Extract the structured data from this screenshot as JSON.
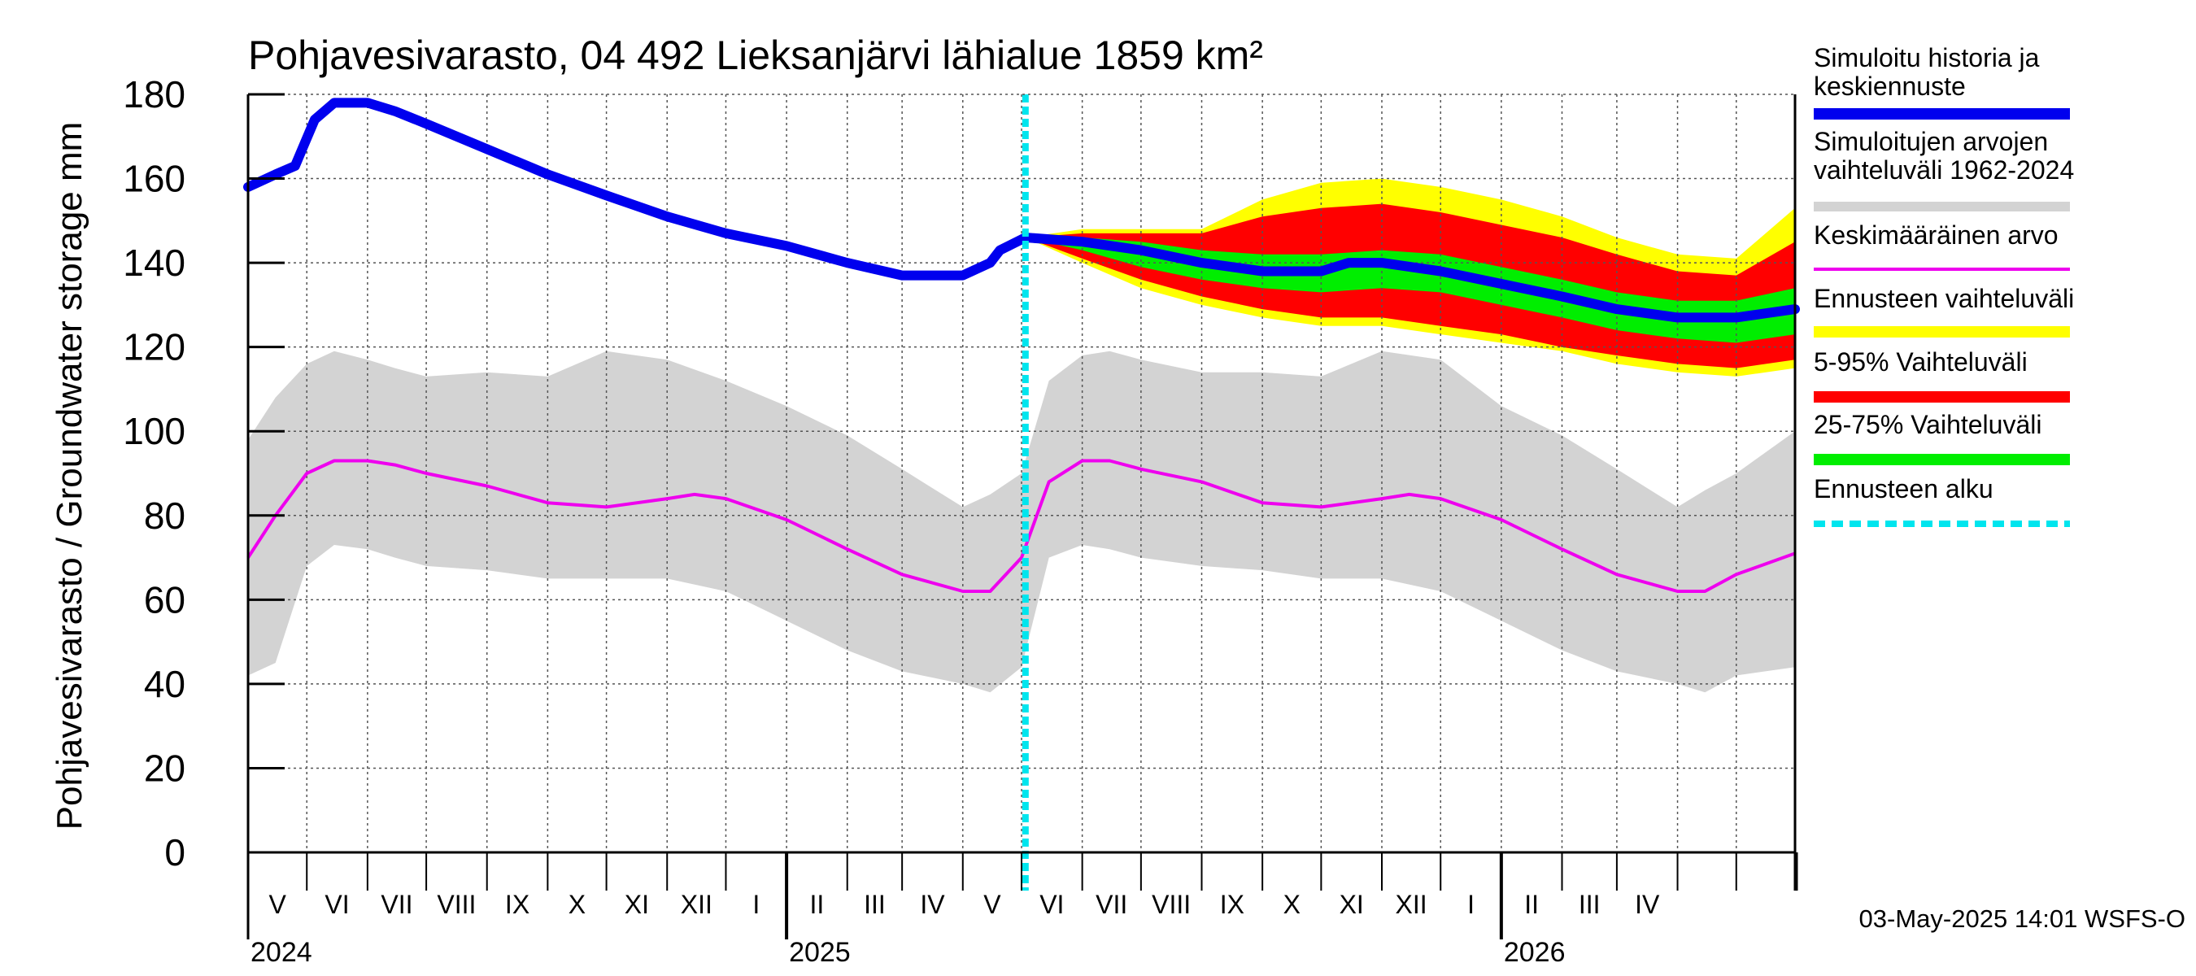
{
  "chart_data": {
    "type": "area",
    "title": "Pohjavesivarasto, 04 492 Lieksanjärvi lähialue 1859 km²",
    "ylabel": "Pohjavesivarasto / Groundwater storage   mm",
    "ylim": [
      0,
      180
    ],
    "yticks": [
      "0",
      "20",
      "40",
      "60",
      "80",
      "100",
      "120",
      "140",
      "160",
      "180"
    ],
    "grid": true,
    "x_start": "2024-04-01",
    "x_end": "2026-05-31",
    "forecast_start": "2025-05-03",
    "months": [
      "V",
      "VI",
      "VII",
      "VIII",
      "IX",
      "X",
      "XI",
      "XII",
      "I",
      "II",
      "III",
      "IV",
      "V",
      "VI",
      "VII",
      "VIII",
      "IX",
      "X",
      "XI",
      "XII",
      "I",
      "II",
      "III",
      "IV"
    ],
    "years": [
      "2024",
      "2025",
      "2026"
    ],
    "timestamp": "03-May-2025 14:01 WSFS-O",
    "legend": [
      "Simuloitu historia ja keskiennuste",
      "Simuloitujen arvojen vaihteluväli 1962-2024",
      "Keskimääräinen arvo",
      "Ennusteen vaihteluväli",
      "5-95% Vaihteluväli",
      "25-75% Vaihteluväli",
      "Ennusteen alku"
    ],
    "legend_colors": [
      "#0000ee",
      "#d3d3d3",
      "#ee00ee",
      "#ffff00",
      "#ff0000",
      "#00ee00",
      "#00e5ee"
    ],
    "historical_range": {
      "x": [
        "2024-04-01",
        "2024-04-15",
        "2024-05-01",
        "2024-05-15",
        "2024-06-01",
        "2024-06-15",
        "2024-07-01",
        "2024-08-01",
        "2024-09-01",
        "2024-10-01",
        "2024-11-01",
        "2024-12-01",
        "2025-01-01",
        "2025-02-01",
        "2025-03-01",
        "2025-04-01",
        "2025-04-15",
        "2025-05-01",
        "2025-05-15",
        "2025-06-01",
        "2025-06-15",
        "2025-07-01",
        "2025-08-01",
        "2025-09-01",
        "2025-10-01",
        "2025-11-01",
        "2025-12-01",
        "2026-01-01",
        "2026-02-01",
        "2026-03-01",
        "2026-04-01",
        "2026-04-15",
        "2026-05-01",
        "2026-05-31"
      ],
      "low": [
        42,
        45,
        68,
        73,
        72,
        70,
        68,
        67,
        65,
        65,
        65,
        62,
        55,
        48,
        43,
        40,
        38,
        44,
        70,
        73,
        72,
        70,
        68,
        67,
        65,
        65,
        62,
        55,
        48,
        43,
        40,
        38,
        42,
        44
      ],
      "high": [
        98,
        108,
        116,
        119,
        117,
        115,
        113,
        114,
        113,
        119,
        117,
        112,
        106,
        99,
        91,
        82,
        85,
        90,
        112,
        118,
        119,
        117,
        114,
        114,
        113,
        119,
        117,
        106,
        99,
        91,
        82,
        86,
        90,
        100
      ]
    },
    "mean": {
      "x": [
        "2024-04-01",
        "2024-04-15",
        "2024-05-01",
        "2024-05-15",
        "2024-06-01",
        "2024-06-15",
        "2024-07-01",
        "2024-08-01",
        "2024-09-01",
        "2024-10-01",
        "2024-11-01",
        "2024-11-15",
        "2024-12-01",
        "2025-01-01",
        "2025-02-01",
        "2025-03-01",
        "2025-04-01",
        "2025-04-15",
        "2025-05-01",
        "2025-05-15",
        "2025-06-01",
        "2025-06-15",
        "2025-07-01",
        "2025-08-01",
        "2025-09-01",
        "2025-10-01",
        "2025-11-01",
        "2025-11-15",
        "2025-12-01",
        "2026-01-01",
        "2026-02-01",
        "2026-03-01",
        "2026-04-01",
        "2026-04-15",
        "2026-05-01",
        "2026-05-31"
      ],
      "y": [
        70,
        80,
        90,
        93,
        93,
        92,
        90,
        87,
        83,
        82,
        84,
        85,
        84,
        79,
        72,
        66,
        62,
        62,
        70,
        88,
        93,
        93,
        91,
        88,
        83,
        82,
        84,
        85,
        84,
        79,
        72,
        66,
        62,
        62,
        66,
        71
      ]
    },
    "simulated_history": {
      "x": [
        "2024-04-01",
        "2024-04-15",
        "2024-04-25",
        "2024-05-05",
        "2024-05-15",
        "2024-06-01",
        "2024-06-15",
        "2024-07-01",
        "2024-08-01",
        "2024-09-01",
        "2024-10-01",
        "2024-11-01",
        "2024-12-01",
        "2025-01-01",
        "2025-02-01",
        "2025-03-01",
        "2025-04-01",
        "2025-04-15",
        "2025-04-20",
        "2025-05-03"
      ],
      "y": [
        158,
        161,
        163,
        174,
        178,
        178,
        176,
        173,
        167,
        161,
        156,
        151,
        147,
        144,
        140,
        137,
        137,
        140,
        143,
        146
      ]
    },
    "forecast_median": {
      "x": [
        "2025-05-03",
        "2025-06-01",
        "2025-07-01",
        "2025-08-01",
        "2025-09-01",
        "2025-10-01",
        "2025-10-15",
        "2025-11-01",
        "2025-12-01",
        "2026-01-01",
        "2026-02-01",
        "2026-03-01",
        "2026-04-01",
        "2026-04-15",
        "2026-05-01",
        "2026-05-31"
      ],
      "y": [
        146,
        145,
        143,
        140,
        138,
        138,
        140,
        140,
        138,
        135,
        132,
        129,
        127,
        127,
        127,
        129
      ]
    },
    "forecast_range": {
      "x": [
        "2025-05-03",
        "2025-06-01",
        "2025-07-01",
        "2025-08-01",
        "2025-09-01",
        "2025-10-01",
        "2025-11-01",
        "2025-12-01",
        "2026-01-01",
        "2026-02-01",
        "2026-03-01",
        "2026-04-01",
        "2026-05-01",
        "2026-05-31"
      ],
      "low": [
        146,
        140,
        134,
        130,
        127,
        125,
        125,
        123,
        121,
        119,
        116,
        114,
        113,
        115
      ],
      "high": [
        146,
        148,
        148,
        148,
        155,
        159,
        160,
        158,
        155,
        151,
        146,
        142,
        141,
        153
      ]
    },
    "forecast_5_95": {
      "x": [
        "2025-05-03",
        "2025-06-01",
        "2025-07-01",
        "2025-08-01",
        "2025-09-01",
        "2025-10-01",
        "2025-11-01",
        "2025-12-01",
        "2026-01-01",
        "2026-02-01",
        "2026-03-01",
        "2026-04-01",
        "2026-05-01",
        "2026-05-31"
      ],
      "low": [
        146,
        141,
        136,
        132,
        129,
        127,
        127,
        125,
        123,
        120,
        118,
        116,
        115,
        117
      ],
      "high": [
        146,
        147,
        147,
        147,
        151,
        153,
        154,
        152,
        149,
        146,
        142,
        138,
        137,
        145
      ]
    },
    "forecast_25_75": {
      "x": [
        "2025-05-03",
        "2025-06-01",
        "2025-07-01",
        "2025-08-01",
        "2025-09-01",
        "2025-10-01",
        "2025-11-01",
        "2025-12-01",
        "2026-01-01",
        "2026-02-01",
        "2026-03-01",
        "2026-04-01",
        "2026-05-01",
        "2026-05-31"
      ],
      "low": [
        146,
        143,
        139,
        136,
        134,
        133,
        134,
        133,
        130,
        127,
        124,
        122,
        121,
        123
      ],
      "high": [
        146,
        146,
        145,
        143,
        142,
        142,
        143,
        142,
        139,
        136,
        133,
        131,
        131,
        134
      ]
    }
  }
}
